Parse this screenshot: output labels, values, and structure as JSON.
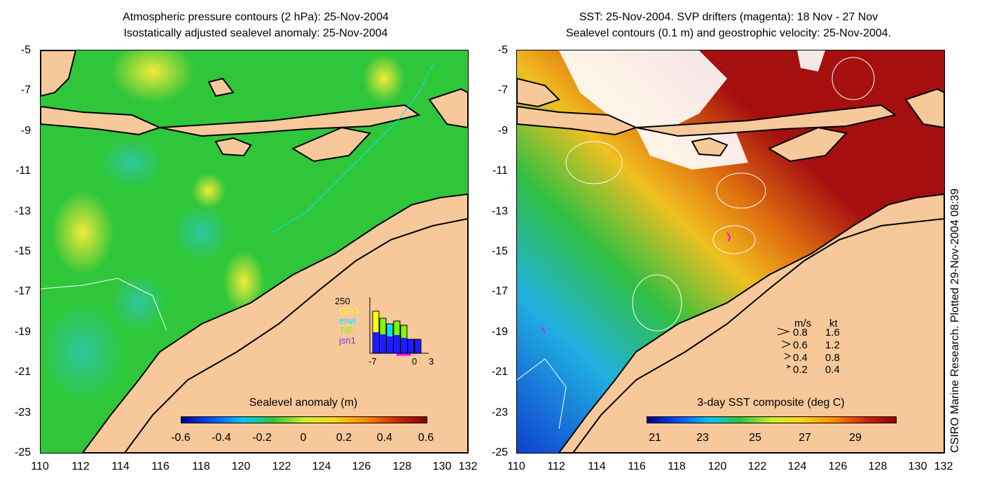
{
  "left_panel": {
    "title_line1": "Atmospheric pressure contours (2 hPa): 25-Nov-2004",
    "title_line2": "Isostatically adjusted sealevel anomaly: 25-Nov-2004",
    "colorbar_title": "Sealevel anomaly (m)",
    "colorbar_ticks": [
      "-0.6",
      "-0.4",
      "-0.2",
      "0",
      "0.2",
      "0.4",
      "0.6"
    ],
    "colors": {
      "ocean": "#2fc63a",
      "land": "#f7c89a"
    },
    "inset": {
      "y_max": "250",
      "labels": [
        "GFO",
        "envi",
        "T/P",
        "jsn1"
      ],
      "label_colors": [
        "#ffff00",
        "#00e5ff",
        "#7CFC00",
        "#8a2be2"
      ],
      "x_ticks": [
        "-7",
        "0",
        "3"
      ]
    }
  },
  "right_panel": {
    "title_line1": "SST: 25-Nov-2004. SVP drifters (magenta): 18 Nov - 27 Nov",
    "title_line2": "Sealevel contours (0.1 m) and geostrophic velocity: 25-Nov-2004.",
    "colorbar_title": "3-day SST composite (deg C)",
    "colorbar_ticks": [
      "21",
      "23",
      "25",
      "27",
      "29"
    ],
    "colors": {
      "warm": "#a50f0f",
      "land": "#f7c89a"
    },
    "velocity_legend": {
      "header_ms": "m/s",
      "header_kt": "kt",
      "rows": [
        {
          "ms": "0.8",
          "kt": "1.6"
        },
        {
          "ms": "0.6",
          "kt": "1.2"
        },
        {
          "ms": "0.4",
          "kt": "0.8"
        },
        {
          "ms": "0.2",
          "kt": "0.4"
        }
      ]
    }
  },
  "axes": {
    "y_ticks": [
      "-5",
      "-7",
      "-9",
      "-11",
      "-13",
      "-15",
      "-17",
      "-19",
      "-21",
      "-23",
      "-25"
    ],
    "x_ticks": [
      "110",
      "112",
      "114",
      "116",
      "118",
      "120",
      "122",
      "124",
      "126",
      "128",
      "130",
      "132"
    ]
  },
  "side_note": "CSIRO Marine Research. Plotted 29-Nov-2004 08:39"
}
